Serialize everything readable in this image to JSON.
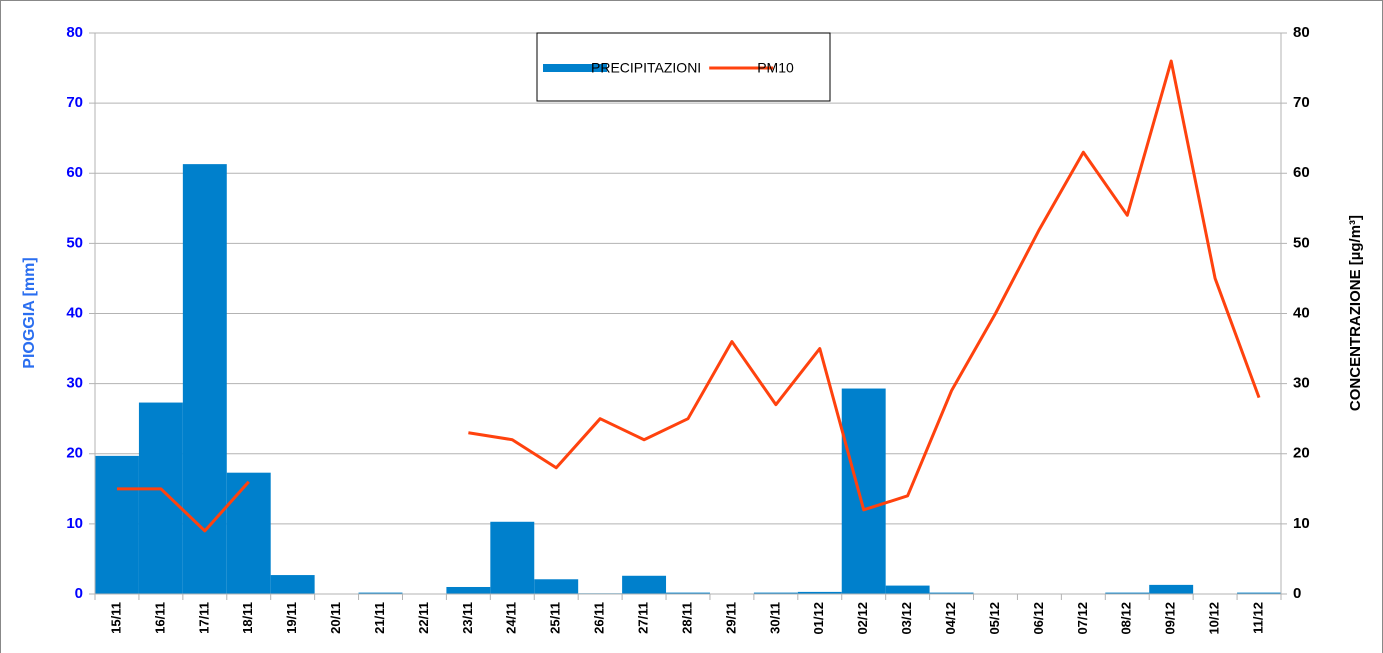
{
  "chart_data": {
    "type": "bar-line",
    "categories": [
      "15/11",
      "16/11",
      "17/11",
      "18/11",
      "19/11",
      "20/11",
      "21/11",
      "22/11",
      "23/11",
      "24/11",
      "25/11",
      "26/11",
      "27/11",
      "28/11",
      "29/11",
      "30/11",
      "01/12",
      "02/12",
      "03/12",
      "04/12",
      "05/12",
      "06/12",
      "07/12",
      "08/12",
      "09/12",
      "10/12",
      "11/12"
    ],
    "series": [
      {
        "name": "PRECIPITAZIONI",
        "color": "#0080cc",
        "type": "bar",
        "values": [
          19.7,
          27.3,
          61.3,
          17.3,
          2.7,
          0,
          0.2,
          0,
          1.0,
          10.3,
          2.1,
          0.1,
          2.6,
          0.2,
          0,
          0.2,
          0.3,
          29.3,
          1.2,
          0.2,
          0,
          0,
          0,
          0.2,
          1.3,
          0,
          0.2
        ]
      },
      {
        "name": "PM10",
        "color": "#ff420e",
        "type": "line",
        "axis": "y2",
        "values": [
          15,
          15,
          9,
          16,
          null,
          null,
          null,
          null,
          23,
          22,
          18,
          25,
          22,
          25,
          36,
          27,
          35,
          12,
          14,
          29,
          40,
          52,
          63,
          54,
          76,
          45,
          28
        ]
      }
    ],
    "ylabel": "PIOGGIA [mm]",
    "y2label": "CONCENTRAZIONE [µg/m³]",
    "ylim": [
      0,
      80
    ],
    "yticks": [
      0,
      10,
      20,
      30,
      40,
      50,
      60,
      70,
      80
    ],
    "y2lim": [
      0,
      80
    ],
    "y2ticks": [
      0,
      10,
      20,
      30,
      40,
      50,
      60,
      70,
      80
    ],
    "grid": true,
    "legend": "top"
  }
}
